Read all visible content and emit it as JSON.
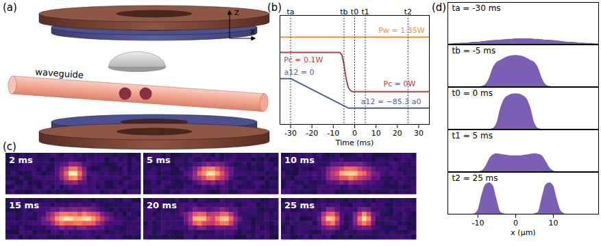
{
  "panel_a": {
    "label": "(a)",
    "waveguide_label": "waveguide",
    "axes": {
      "vertical": "z",
      "horizontal": "x"
    }
  },
  "panel_c": {
    "label": "(c)",
    "frames": [
      "2 ms",
      "5 ms",
      "10 ms",
      "15 ms",
      "20 ms",
      "25 ms"
    ]
  },
  "chart_data": [
    {
      "type": "line",
      "panel": "(b)",
      "xlabel": "Time (ms)",
      "xlim": [
        -35,
        35
      ],
      "xticks": [
        -30,
        -20,
        -10,
        0,
        10,
        20,
        30
      ],
      "ylim": [
        0,
        1
      ],
      "tick_labels": "x",
      "series": [
        {
          "color": "#e8963c",
          "line_style": "solid",
          "x": [
            -35,
            35
          ],
          "values": [
            0.8,
            0.8
          ]
        },
        {
          "color": "#b5403f",
          "line_style": "solid",
          "x": [
            -35,
            -7,
            -6,
            -5,
            -4,
            -3,
            -2,
            -1,
            35
          ],
          "values": [
            0.66,
            0.66,
            0.64,
            0.55,
            0.42,
            0.34,
            0.31,
            0.3,
            0.3
          ]
        },
        {
          "color": "#4a5fa8",
          "line_style": "solid",
          "x": [
            -35,
            -30,
            -3,
            35
          ],
          "values": [
            0.42,
            0.42,
            0.15,
            0.15
          ]
        }
      ],
      "vlines": [
        {
          "value": -30,
          "label": "ta"
        },
        {
          "value": -5,
          "label": "tb"
        },
        {
          "value": 0,
          "label": "t0"
        },
        {
          "value": 5,
          "label": "t1"
        },
        {
          "value": 25,
          "label": "t2"
        }
      ],
      "annotations": [
        {
          "text": "Pw = 1.35W",
          "x": 22,
          "y": 0.86,
          "color": "#e8963c"
        },
        {
          "text": "Pc = 0.1W",
          "x": -24,
          "y": 0.59,
          "color": "#b5403f"
        },
        {
          "text": "Pc = 0W",
          "x": 21,
          "y": 0.37,
          "color": "#b5403f"
        },
        {
          "text": "a12 = 0",
          "x": -26,
          "y": 0.48,
          "color": "#4a5fa8"
        },
        {
          "text": "a12 = −85.3 a0",
          "x": 17,
          "y": 0.21,
          "color": "#4a5fa8"
        }
      ]
    },
    {
      "type": "area",
      "panel": "(d)",
      "title": "ta = -30 ms",
      "color": "#7c5fb3",
      "xlim": [
        -18,
        22
      ],
      "ylim": [
        0,
        1
      ],
      "tick_labels": false,
      "x": [
        -18,
        -17,
        -16,
        -15,
        -14,
        -13,
        -12,
        -11,
        -10,
        -9,
        -8,
        -7,
        -6,
        -5,
        -4,
        -3,
        -2,
        -1,
        0,
        1,
        2,
        3,
        4,
        5,
        6,
        7,
        8,
        9,
        10,
        11,
        12,
        13,
        14,
        15,
        16,
        17,
        18,
        19,
        20,
        21,
        22
      ],
      "values": [
        0.01,
        0.01,
        0.02,
        0.02,
        0.03,
        0.03,
        0.04,
        0.05,
        0.05,
        0.06,
        0.07,
        0.08,
        0.09,
        0.1,
        0.1,
        0.11,
        0.12,
        0.12,
        0.13,
        0.13,
        0.13,
        0.13,
        0.13,
        0.12,
        0.12,
        0.11,
        0.1,
        0.1,
        0.09,
        0.08,
        0.07,
        0.06,
        0.05,
        0.05,
        0.04,
        0.03,
        0.03,
        0.02,
        0.02,
        0.01,
        0.01
      ]
    },
    {
      "type": "area",
      "title": "tb = -5 ms",
      "color": "#7c5fb3",
      "xlim": [
        -18,
        22
      ],
      "ylim": [
        0,
        1
      ],
      "tick_labels": false,
      "x": [
        -18,
        -17,
        -16,
        -15,
        -14,
        -13,
        -12,
        -11,
        -10,
        -9,
        -8,
        -7,
        -6,
        -5,
        -4,
        -3,
        -2,
        -1,
        0,
        1,
        2,
        3,
        4,
        5,
        6,
        7,
        8,
        9,
        10,
        11,
        12,
        13,
        14,
        15,
        16,
        17,
        18,
        19,
        20,
        21,
        22
      ],
      "values": [
        0,
        0,
        0,
        0,
        0,
        0,
        0,
        0,
        0,
        0.01,
        0.05,
        0.2,
        0.45,
        0.58,
        0.63,
        0.68,
        0.72,
        0.74,
        0.75,
        0.74,
        0.72,
        0.68,
        0.63,
        0.58,
        0.45,
        0.2,
        0.05,
        0.01,
        0,
        0,
        0,
        0,
        0,
        0,
        0,
        0,
        0,
        0,
        0,
        0,
        0
      ]
    },
    {
      "type": "area",
      "title": "t0 = 0 ms",
      "color": "#7c5fb3",
      "xlim": [
        -18,
        22
      ],
      "ylim": [
        0,
        1
      ],
      "tick_labels": false,
      "x": [
        -18,
        -17,
        -16,
        -15,
        -14,
        -13,
        -12,
        -11,
        -10,
        -9,
        -8,
        -7,
        -6,
        -5,
        -4,
        -3,
        -2,
        -1,
        0,
        1,
        2,
        3,
        4,
        5,
        6,
        7,
        8,
        9,
        10,
        11,
        12,
        13,
        14,
        15,
        16,
        17,
        18,
        19,
        20,
        21,
        22
      ],
      "values": [
        0,
        0,
        0,
        0,
        0,
        0,
        0,
        0,
        0,
        0,
        0,
        0,
        0.02,
        0.15,
        0.5,
        0.72,
        0.8,
        0.84,
        0.85,
        0.84,
        0.8,
        0.72,
        0.5,
        0.15,
        0.02,
        0,
        0,
        0,
        0,
        0,
        0,
        0,
        0,
        0,
        0,
        0,
        0,
        0,
        0,
        0,
        0
      ]
    },
    {
      "type": "area",
      "title": "t1 = 5 ms",
      "color": "#7c5fb3",
      "xlim": [
        -18,
        22
      ],
      "ylim": [
        0,
        1
      ],
      "tick_labels": false,
      "x": [
        -18,
        -17,
        -16,
        -15,
        -14,
        -13,
        -12,
        -11,
        -10,
        -9,
        -8,
        -7,
        -6,
        -5,
        -4,
        -3,
        -2,
        -1,
        0,
        1,
        2,
        3,
        4,
        5,
        6,
        7,
        8,
        9,
        10,
        11,
        12,
        13,
        14,
        15,
        16,
        17,
        18,
        19,
        20,
        21,
        22
      ],
      "values": [
        0,
        0,
        0,
        0,
        0,
        0,
        0,
        0,
        0,
        0.02,
        0.12,
        0.3,
        0.4,
        0.43,
        0.42,
        0.4,
        0.39,
        0.38,
        0.38,
        0.38,
        0.39,
        0.4,
        0.42,
        0.43,
        0.42,
        0.38,
        0.25,
        0.1,
        0.02,
        0,
        0,
        0,
        0,
        0,
        0,
        0,
        0,
        0,
        0,
        0,
        0
      ]
    },
    {
      "type": "area",
      "title": "t2 = 25 ms",
      "color": "#7c5fb3",
      "xlim": [
        -18,
        22
      ],
      "ylim": [
        0,
        1
      ],
      "xticks": [
        -10,
        0,
        10
      ],
      "xlabel": "x (μm)",
      "tick_labels": "x",
      "x": [
        -18,
        -17,
        -16,
        -15,
        -14,
        -13,
        -12,
        -11,
        -10,
        -9,
        -8,
        -7,
        -6,
        -5,
        -4,
        -3,
        -2,
        -1,
        0,
        1,
        2,
        3,
        4,
        5,
        6,
        7,
        8,
        9,
        10,
        11,
        12,
        13,
        14,
        15,
        16,
        17,
        18,
        19,
        20,
        21,
        22
      ],
      "values": [
        0,
        0,
        0,
        0,
        0,
        0,
        0,
        0.01,
        0.1,
        0.45,
        0.7,
        0.75,
        0.68,
        0.35,
        0.05,
        0.01,
        0,
        0,
        0,
        0,
        0,
        0,
        0,
        0.01,
        0.05,
        0.4,
        0.7,
        0.75,
        0.68,
        0.35,
        0.08,
        0.01,
        0,
        0,
        0,
        0,
        0,
        0,
        0,
        0,
        0
      ]
    }
  ]
}
